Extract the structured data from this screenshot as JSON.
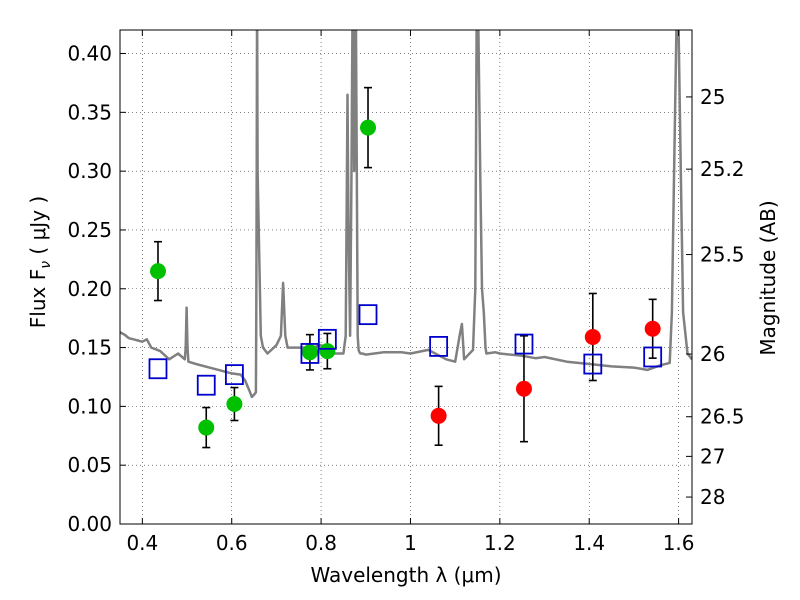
{
  "chart_data": {
    "type": "scatter",
    "xlabel": "Wavelength  λ (μm)",
    "ylabel": "Flux  F",
    "ylabel_sub": "ν",
    "ylabel_unit": "  ( μJy )",
    "y2label": "Magnitude (AB)",
    "xlim": [
      0.35,
      1.63
    ],
    "ylim": [
      0.0,
      0.42
    ],
    "grid": true,
    "x_ticks": [
      0.4,
      0.6,
      0.8,
      1.0,
      1.2,
      1.4,
      1.6
    ],
    "x_tick_labels": [
      "0.4",
      "0.6",
      "0.8",
      "1",
      "1.2",
      "1.4",
      "1.6"
    ],
    "y_ticks": [
      0.0,
      0.05,
      0.1,
      0.15,
      0.2,
      0.25,
      0.3,
      0.35,
      0.4
    ],
    "y_tick_labels": [
      "0.00",
      "0.05",
      "0.10",
      "0.15",
      "0.20",
      "0.25",
      "0.30",
      "0.35",
      "0.40"
    ],
    "y2_ticks": [
      {
        "flux": 0.3631,
        "label": "25"
      },
      {
        "flux": 0.3017,
        "label": "25.2"
      },
      {
        "flux": 0.2291,
        "label": "25.5"
      },
      {
        "flux": 0.1445,
        "label": "26"
      },
      {
        "flux": 0.0912,
        "label": "26.5"
      },
      {
        "flux": 0.0575,
        "label": "27"
      },
      {
        "flux": 0.0229,
        "label": "28"
      }
    ],
    "series": [
      {
        "name": "detections",
        "marker": "circle",
        "color": "#00c000",
        "points": [
          {
            "x": 0.435,
            "y": 0.215,
            "err": 0.025
          },
          {
            "x": 0.543,
            "y": 0.082,
            "err": 0.017
          },
          {
            "x": 0.606,
            "y": 0.102,
            "err": 0.014
          },
          {
            "x": 0.775,
            "y": 0.146,
            "err": 0.015
          },
          {
            "x": 0.814,
            "y": 0.147,
            "err": 0.015
          },
          {
            "x": 0.905,
            "y": 0.337,
            "err": 0.034
          }
        ]
      },
      {
        "name": "nir_detections",
        "marker": "circle",
        "color": "#ff0000",
        "points": [
          {
            "x": 1.063,
            "y": 0.092,
            "err": 0.025
          },
          {
            "x": 1.254,
            "y": 0.115,
            "err": 0.045
          },
          {
            "x": 1.408,
            "y": 0.159,
            "err": 0.037
          },
          {
            "x": 1.542,
            "y": 0.166,
            "err": 0.025
          }
        ]
      },
      {
        "name": "model_photometry",
        "marker": "square",
        "color": "#0000cc",
        "points": [
          {
            "x": 0.435,
            "y": 0.132
          },
          {
            "x": 0.543,
            "y": 0.118
          },
          {
            "x": 0.606,
            "y": 0.127
          },
          {
            "x": 0.775,
            "y": 0.145
          },
          {
            "x": 0.814,
            "y": 0.157
          },
          {
            "x": 0.905,
            "y": 0.178
          },
          {
            "x": 1.063,
            "y": 0.151
          },
          {
            "x": 1.254,
            "y": 0.153
          },
          {
            "x": 1.408,
            "y": 0.136
          },
          {
            "x": 1.542,
            "y": 0.142
          }
        ]
      },
      {
        "name": "model_spectrum",
        "type": "line",
        "color": "#808080",
        "x": [
          0.35,
          0.36,
          0.37,
          0.38,
          0.39,
          0.4,
          0.41,
          0.42,
          0.44,
          0.46,
          0.48,
          0.495,
          0.497,
          0.499,
          0.501,
          0.503,
          0.52,
          0.55,
          0.58,
          0.6,
          0.62,
          0.63,
          0.64,
          0.645,
          0.65,
          0.654,
          0.655,
          0.656,
          0.6565,
          0.657,
          0.658,
          0.665,
          0.67,
          0.68,
          0.7,
          0.71,
          0.715,
          0.72,
          0.725,
          0.74,
          0.76,
          0.78,
          0.8,
          0.83,
          0.85,
          0.855,
          0.857,
          0.859,
          0.861,
          0.865,
          0.868,
          0.87,
          0.872,
          0.874,
          0.876,
          0.878,
          0.88,
          0.882,
          0.884,
          0.886,
          0.888,
          0.892,
          0.9,
          0.94,
          0.98,
          1.0,
          1.04,
          1.08,
          1.1,
          1.11,
          1.115,
          1.12,
          1.14,
          1.145,
          1.148,
          1.15,
          1.152,
          1.156,
          1.16,
          1.164,
          1.168,
          1.17,
          1.19,
          1.2,
          1.25,
          1.28,
          1.3,
          1.35,
          1.4,
          1.45,
          1.5,
          1.53,
          1.56,
          1.58,
          1.585,
          1.59,
          1.595,
          1.6,
          1.605,
          1.61,
          1.62,
          1.63
        ],
        "y": [
          0.163,
          0.161,
          0.158,
          0.157,
          0.156,
          0.155,
          0.157,
          0.15,
          0.147,
          0.14,
          0.145,
          0.14,
          0.15,
          0.184,
          0.15,
          0.138,
          0.136,
          0.133,
          0.13,
          0.128,
          0.127,
          0.122,
          0.113,
          0.108,
          0.11,
          0.112,
          0.18,
          0.3,
          0.42,
          0.42,
          0.3,
          0.16,
          0.15,
          0.145,
          0.152,
          0.16,
          0.205,
          0.16,
          0.15,
          0.15,
          0.15,
          0.15,
          0.152,
          0.145,
          0.145,
          0.16,
          0.26,
          0.365,
          0.26,
          0.16,
          0.3,
          0.42,
          0.42,
          0.3,
          0.42,
          0.42,
          0.3,
          0.16,
          0.148,
          0.146,
          0.145,
          0.145,
          0.144,
          0.146,
          0.146,
          0.145,
          0.148,
          0.14,
          0.138,
          0.16,
          0.17,
          0.14,
          0.148,
          0.2,
          0.42,
          0.42,
          0.42,
          0.3,
          0.2,
          0.18,
          0.15,
          0.145,
          0.146,
          0.145,
          0.143,
          0.141,
          0.142,
          0.138,
          0.136,
          0.134,
          0.133,
          0.131,
          0.135,
          0.137,
          0.18,
          0.3,
          0.42,
          0.42,
          0.3,
          0.18,
          0.145,
          0.14
        ]
      }
    ]
  }
}
